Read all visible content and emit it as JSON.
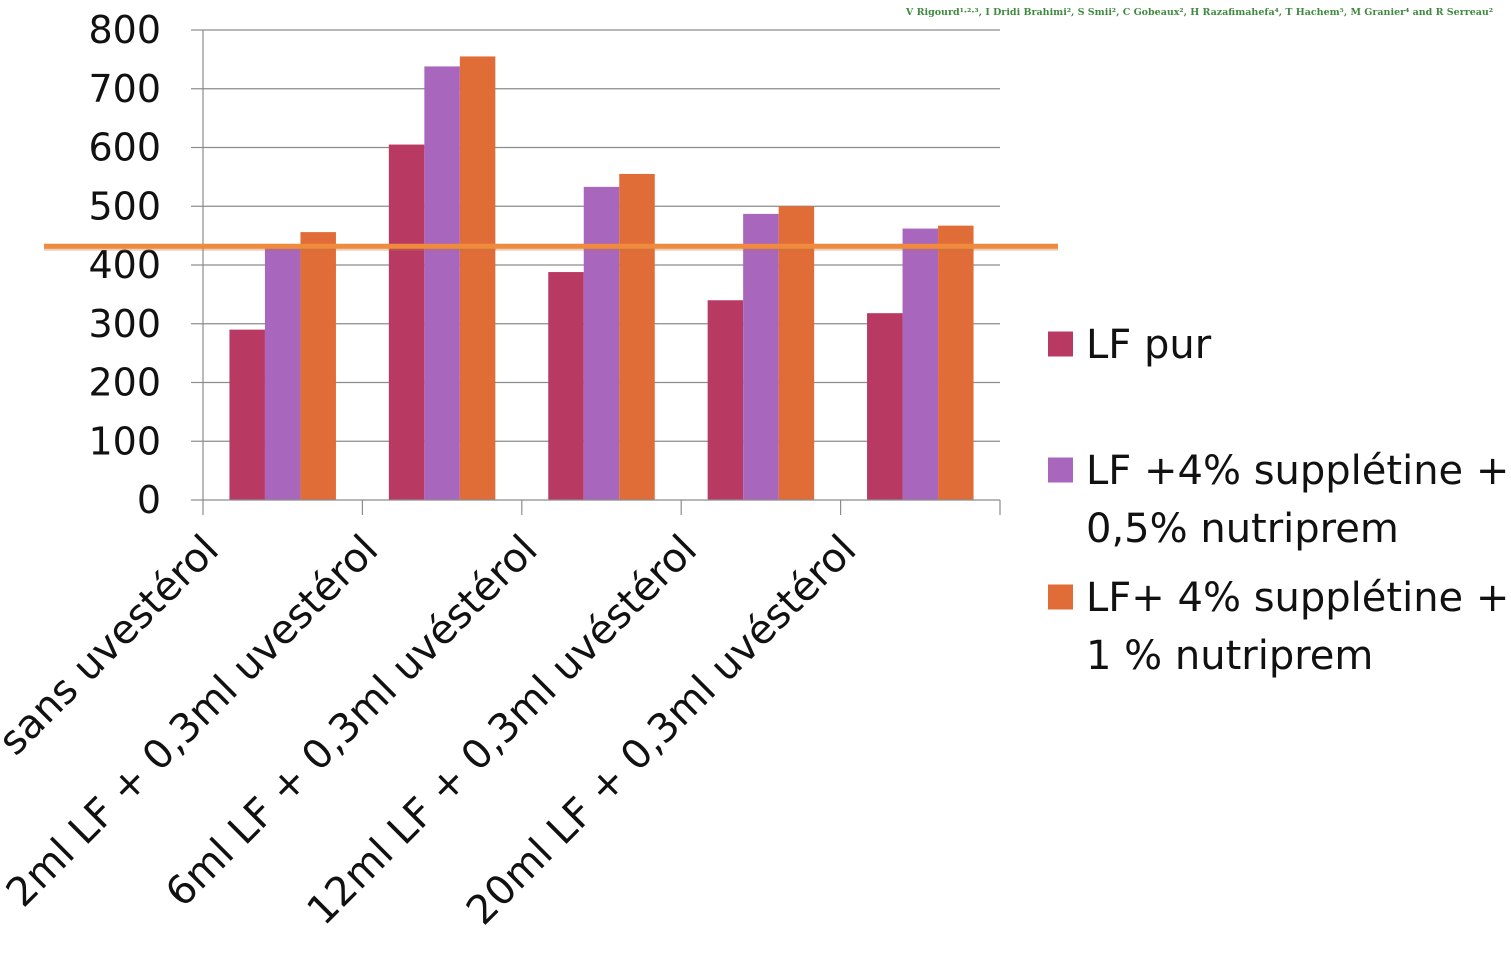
{
  "credit": "V Rigourd¹·²·³, I Dridi Brahimi², S Smii², C Gobeaux², H Razafimahefa⁴, T Hachem⁵, M Granier⁴ and R Serreau²",
  "reference_line": {
    "value": 432,
    "color": "#F08A3C"
  },
  "chart_data": {
    "type": "bar",
    "title": "",
    "xlabel": "",
    "ylabel": "",
    "ylim": [
      0,
      800
    ],
    "yticks": [
      0,
      100,
      200,
      300,
      400,
      500,
      600,
      700,
      800
    ],
    "grid": true,
    "legend_position": "right",
    "categories": [
      "LF sans uvestérol",
      "2ml LF + 0,3ml uvestérol",
      "6ml LF + 0,3ml uvéstérol",
      "12ml LF + 0,3ml uvéstérol",
      "20ml LF + 0,3ml uvéstérol"
    ],
    "series": [
      {
        "name": "LF pur",
        "color": "#B83A63",
        "values": [
          290,
          605,
          388,
          340,
          318
        ]
      },
      {
        "name": "LF +4% supplétine + 0,5% nutriprem",
        "legend_lines": [
          "LF +4% supplétine +",
          "0,5% nutriprem"
        ],
        "color": "#A866BD",
        "values": [
          428,
          738,
          533,
          487,
          462
        ]
      },
      {
        "name": "LF+ 4% supplétine + 1 % nutriprem",
        "legend_lines": [
          "LF+ 4% supplétine +",
          "1 % nutriprem"
        ],
        "color": "#E06D37",
        "values": [
          456,
          755,
          555,
          500,
          467
        ]
      }
    ]
  }
}
